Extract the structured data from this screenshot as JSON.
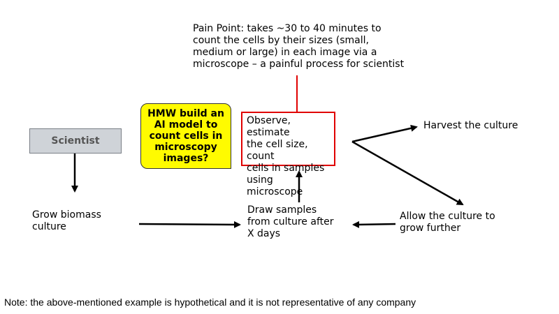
{
  "diagram": {
    "pain_point": "Pain Point: takes ~30 to 40 minutes to\ncount the cells by their sizes (small,\nmedium or large) in each image via a\nmicroscope – a painful process for scientist",
    "scientist": "Scientist",
    "hmw": "HMW build an\nAI model to\ncount cells in\nmicroscopy\nimages?",
    "observe": "Observe, estimate\nthe cell size, count\ncells in samples\nusing microscope",
    "harvest": "Harvest the culture",
    "grow": "Grow biomass\nculture",
    "draw_samples": "Draw samples\nfrom culture after\nX days",
    "allow": "Allow the culture to\ngrow further"
  },
  "note": "Note: the above-mentioned example is hypothetical and it is not representative of any company",
  "colors": {
    "hmw_fill": "#fffb00",
    "observe_border": "#e00000",
    "scientist_fill": "#cfd3d8",
    "pain_line": "#e00000"
  }
}
